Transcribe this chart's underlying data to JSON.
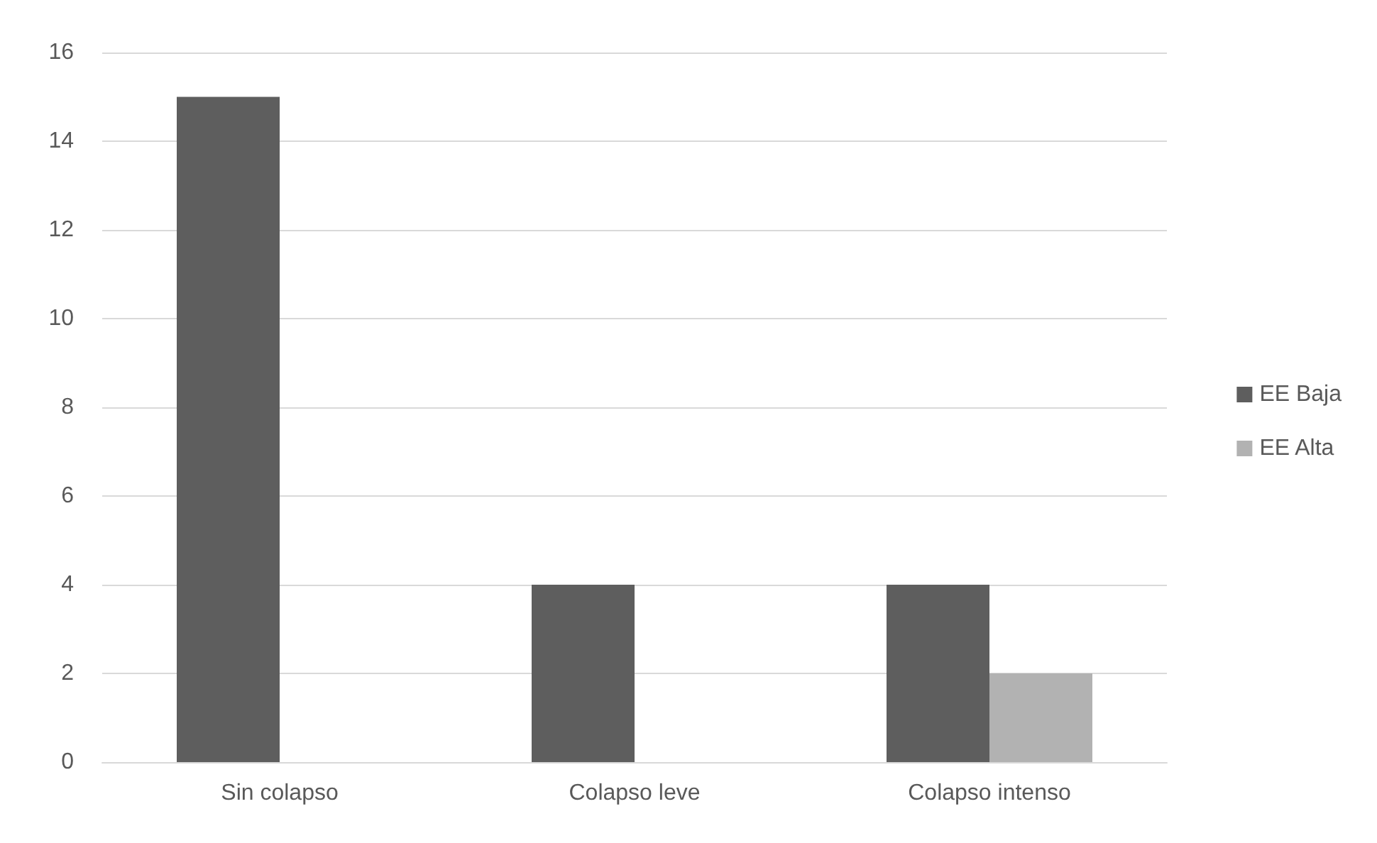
{
  "chart_data": {
    "type": "bar",
    "categories": [
      "Sin colapso",
      "Colapso leve",
      "Colapso intenso"
    ],
    "series": [
      {
        "name": "EE Baja",
        "color": "#5e5e5e",
        "values": [
          15,
          4,
          4
        ]
      },
      {
        "name": "EE Alta",
        "color": "#b2b2b2",
        "values": [
          0,
          0,
          2
        ]
      }
    ],
    "ylim": [
      0,
      16
    ],
    "yticks": [
      0,
      2,
      4,
      6,
      8,
      10,
      12,
      14,
      16
    ],
    "grid": "y",
    "legend": "right"
  }
}
